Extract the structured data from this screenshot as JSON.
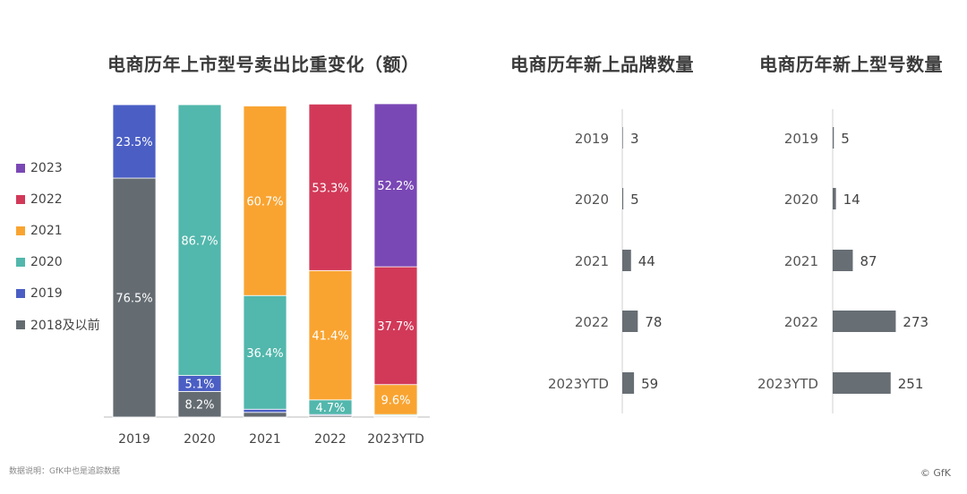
{
  "colors": {
    "2018及以前": "#646c72",
    "2019": "#4a5ec4",
    "2020": "#52b7ac",
    "2021": "#f9a431",
    "2022": "#d23958",
    "2023": "#7a48b5",
    "bar_gray": "#676e74"
  },
  "footnote": "数据说明：GfK中也是追踪数据",
  "copyright": "© GfK",
  "chart_data": [
    {
      "type": "bar",
      "stacked": true,
      "percent": true,
      "title": "电商历年上市型号卖出比重变化（额）",
      "categories": [
        "2019",
        "2020",
        "2021",
        "2022",
        "2023YTD"
      ],
      "legend": [
        "2023",
        "2022",
        "2021",
        "2020",
        "2019",
        "2018及以前"
      ],
      "legend_position": "left",
      "series": [
        {
          "name": "2018及以前",
          "values": [
            76.5,
            8.2,
            1.5,
            0.5,
            0.3
          ],
          "labels": [
            "76.5%",
            "8.2%",
            "",
            "",
            ""
          ]
        },
        {
          "name": "2019",
          "values": [
            23.5,
            5.1,
            1.0,
            0.3,
            0.2
          ],
          "labels": [
            "23.5%",
            "5.1%",
            "",
            "",
            ""
          ]
        },
        {
          "name": "2020",
          "values": [
            0,
            86.7,
            36.4,
            4.7,
            0.3
          ],
          "labels": [
            "",
            "86.7%",
            "36.4%",
            "4.7%",
            ""
          ]
        },
        {
          "name": "2021",
          "values": [
            0,
            0,
            60.7,
            41.4,
            9.6
          ],
          "labels": [
            "",
            "",
            "60.7%",
            "41.4%",
            "9.6%"
          ]
        },
        {
          "name": "2022",
          "values": [
            0,
            0,
            0,
            53.3,
            37.7
          ],
          "labels": [
            "",
            "",
            "",
            "53.3%",
            "37.7%"
          ]
        },
        {
          "name": "2023",
          "values": [
            0,
            0,
            0,
            0,
            52.2
          ],
          "labels": [
            "",
            "",
            "",
            "",
            "52.2%"
          ]
        }
      ],
      "ylim": [
        0,
        100
      ]
    },
    {
      "type": "bar",
      "orientation": "horizontal",
      "title": "电商历年新上品牌数量",
      "categories": [
        "2019",
        "2020",
        "2021",
        "2022",
        "2023YTD"
      ],
      "values": [
        3,
        5,
        44,
        78,
        59
      ]
    },
    {
      "type": "bar",
      "orientation": "horizontal",
      "title": "电商历年新上型号数量",
      "categories": [
        "2019",
        "2020",
        "2021",
        "2022",
        "2023YTD"
      ],
      "values": [
        5,
        14,
        87,
        273,
        251
      ]
    }
  ]
}
